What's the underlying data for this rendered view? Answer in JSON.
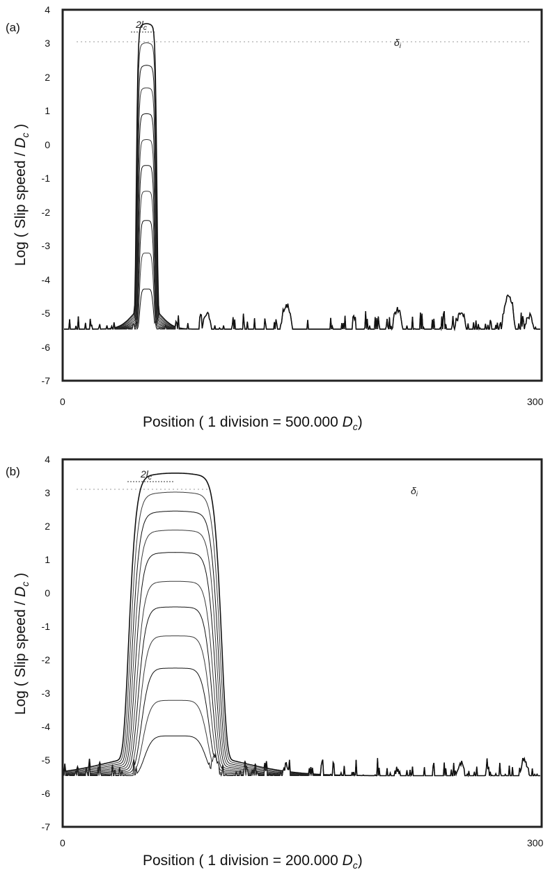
{
  "chart_data": [
    {
      "panel": "(a)",
      "type": "line",
      "ylabel": "Log  ( Slip speed / D_c )",
      "ylabel_parts": {
        "pre": "Log  ( Slip speed / ",
        "var": "D",
        "sub": "c",
        "post": " )"
      },
      "xlabel_parts": {
        "pre": "Position  ( 1 division = 500.000 ",
        "var": "D",
        "sub": "c",
        "post": ")"
      },
      "xlim": [
        0,
        300
      ],
      "ylim": [
        -7,
        4
      ],
      "x_ticks": [
        "0",
        "300"
      ],
      "y_ticks": [
        "4",
        "3",
        "2",
        "1",
        "0",
        "-1",
        "-2",
        "-3",
        "-4",
        "-5",
        "-6",
        "-7"
      ],
      "annotations": {
        "width_label": "2l",
        "width_sub": "c",
        "delta_label": "δ",
        "delta_sub": "i"
      },
      "pulse_center": 52,
      "pulse_halfwidth": 6,
      "bumps": [
        [
          90,
          -5.0
        ],
        [
          140,
          -4.75
        ],
        [
          210,
          -4.9
        ],
        [
          250,
          -4.95
        ],
        [
          280,
          -4.45
        ],
        [
          293,
          -5.1
        ]
      ],
      "series": [
        {
          "peak": -4.3
        },
        {
          "peak": -3.3
        },
        {
          "peak": -2.4
        },
        {
          "peak": -1.6
        },
        {
          "peak": -0.9
        },
        {
          "peak": -0.2
        },
        {
          "peak": 0.5
        },
        {
          "peak": 1.2
        },
        {
          "peak": 1.8
        },
        {
          "peak": 2.4
        },
        {
          "peak": 2.9
        }
      ]
    },
    {
      "panel": "(b)",
      "type": "line",
      "ylabel": "Log  ( Slip speed / D_c )",
      "ylabel_parts": {
        "pre": "Log  ( Slip speed / ",
        "var": "D",
        "sub": "c",
        "post": " )"
      },
      "xlabel_parts": {
        "pre": "Position  ( 1 division = 200.000 ",
        "var": "D",
        "sub": "c",
        "post": ")"
      },
      "xlim": [
        0,
        300
      ],
      "ylim": [
        -7,
        4
      ],
      "x_ticks": [
        "0",
        "300"
      ],
      "y_ticks": [
        "4",
        "3",
        "2",
        "1",
        "0",
        "-1",
        "-2",
        "-3",
        "-4",
        "-5",
        "-6",
        "-7"
      ],
      "annotations": {
        "width_label": "2l",
        "width_sub": "c",
        "delta_label": "δ",
        "delta_sub": "i"
      },
      "pulse_center": 70,
      "pulse_halfwidth": 27,
      "bumps": [
        [
          95,
          -4.9
        ],
        [
          140,
          -5.2
        ],
        [
          210,
          -5.3
        ],
        [
          250,
          -5.1
        ],
        [
          290,
          -5.0
        ]
      ],
      "series": [
        {
          "peak": -4.3
        },
        {
          "peak": -3.3
        },
        {
          "peak": -2.4
        },
        {
          "peak": -1.5
        },
        {
          "peak": -0.7
        },
        {
          "peak": 0.0
        },
        {
          "peak": 0.8
        },
        {
          "peak": 1.4
        },
        {
          "peak": 1.9
        },
        {
          "peak": 2.4
        },
        {
          "peak": 2.9
        }
      ]
    }
  ]
}
